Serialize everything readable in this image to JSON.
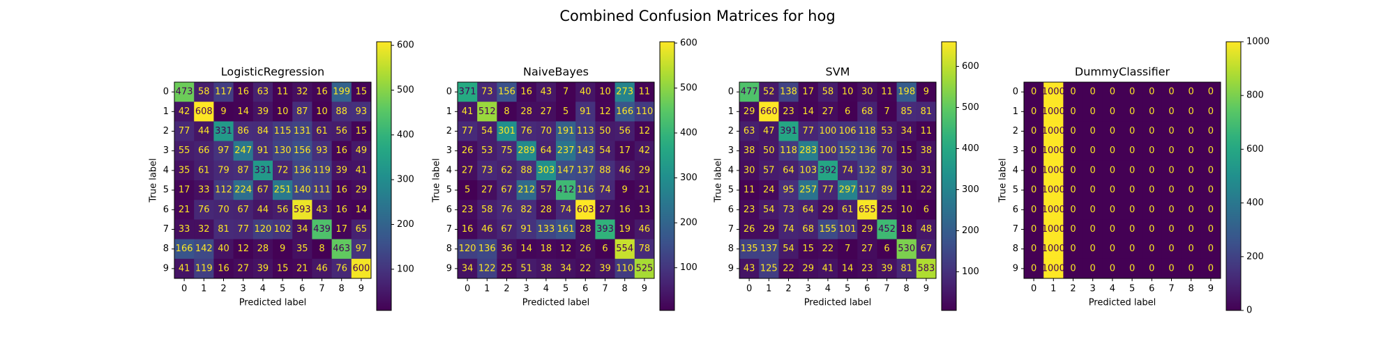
{
  "title": "Combined Confusion Matrices for hog",
  "chart_data": [
    {
      "type": "heatmap",
      "title": "LogisticRegression",
      "x_label": "Predicted label",
      "y_label": "True label",
      "colormap": "viridis",
      "categories": [
        0,
        1,
        2,
        3,
        4,
        5,
        6,
        7,
        8,
        9
      ],
      "values": [
        [
          473,
          58,
          117,
          16,
          63,
          11,
          32,
          16,
          199,
          15
        ],
        [
          42,
          608,
          9,
          14,
          39,
          10,
          87,
          10,
          88,
          93
        ],
        [
          77,
          44,
          331,
          86,
          84,
          115,
          131,
          61,
          56,
          15
        ],
        [
          55,
          66,
          97,
          247,
          91,
          130,
          156,
          93,
          16,
          49
        ],
        [
          35,
          61,
          79,
          87,
          331,
          72,
          136,
          119,
          39,
          41
        ],
        [
          17,
          33,
          112,
          224,
          67,
          251,
          140,
          111,
          16,
          29
        ],
        [
          21,
          76,
          70,
          67,
          44,
          56,
          593,
          43,
          16,
          14
        ],
        [
          33,
          32,
          81,
          77,
          120,
          102,
          34,
          439,
          17,
          65
        ],
        [
          166,
          142,
          40,
          12,
          28,
          9,
          35,
          8,
          463,
          97
        ],
        [
          41,
          119,
          16,
          27,
          39,
          15,
          21,
          46,
          76,
          600
        ]
      ],
      "clim": [
        8,
        608
      ],
      "cticks": [
        100,
        200,
        300,
        400,
        500,
        600
      ]
    },
    {
      "type": "heatmap",
      "title": "NaiveBayes",
      "x_label": "Predicted label",
      "y_label": "True label",
      "colormap": "viridis",
      "categories": [
        0,
        1,
        2,
        3,
        4,
        5,
        6,
        7,
        8,
        9
      ],
      "values": [
        [
          371,
          73,
          156,
          16,
          43,
          7,
          40,
          10,
          273,
          11
        ],
        [
          41,
          512,
          8,
          28,
          27,
          5,
          91,
          12,
          166,
          110
        ],
        [
          77,
          54,
          301,
          76,
          70,
          191,
          113,
          50,
          56,
          12
        ],
        [
          26,
          53,
          75,
          289,
          64,
          237,
          143,
          54,
          17,
          42
        ],
        [
          27,
          73,
          62,
          88,
          303,
          147,
          137,
          88,
          46,
          29
        ],
        [
          5,
          27,
          67,
          212,
          57,
          412,
          116,
          74,
          9,
          21
        ],
        [
          23,
          58,
          76,
          82,
          28,
          74,
          603,
          27,
          16,
          13
        ],
        [
          16,
          46,
          67,
          91,
          133,
          161,
          28,
          393,
          19,
          46
        ],
        [
          120,
          136,
          36,
          14,
          18,
          12,
          26,
          6,
          554,
          78
        ],
        [
          34,
          122,
          25,
          51,
          38,
          34,
          22,
          39,
          110,
          525
        ]
      ],
      "clim": [
        5,
        603
      ],
      "cticks": [
        100,
        200,
        300,
        400,
        500,
        600
      ]
    },
    {
      "type": "heatmap",
      "title": "SVM",
      "x_label": "Predicted label",
      "y_label": "True label",
      "colormap": "viridis",
      "categories": [
        0,
        1,
        2,
        3,
        4,
        5,
        6,
        7,
        8,
        9
      ],
      "values": [
        [
          477,
          52,
          138,
          17,
          58,
          10,
          30,
          11,
          198,
          9
        ],
        [
          29,
          660,
          23,
          14,
          27,
          6,
          68,
          7,
          85,
          81
        ],
        [
          63,
          47,
          391,
          77,
          100,
          106,
          118,
          53,
          34,
          11
        ],
        [
          38,
          50,
          118,
          283,
          100,
          152,
          136,
          70,
          15,
          38
        ],
        [
          30,
          57,
          64,
          103,
          392,
          74,
          132,
          87,
          30,
          31
        ],
        [
          11,
          24,
          95,
          257,
          77,
          297,
          117,
          89,
          11,
          22
        ],
        [
          23,
          54,
          73,
          64,
          29,
          61,
          655,
          25,
          10,
          6
        ],
        [
          26,
          29,
          74,
          68,
          155,
          101,
          29,
          452,
          18,
          48
        ],
        [
          135,
          137,
          54,
          15,
          22,
          7,
          27,
          6,
          530,
          67
        ],
        [
          43,
          125,
          22,
          29,
          41,
          14,
          23,
          39,
          81,
          583
        ]
      ],
      "clim": [
        6,
        660
      ],
      "cticks": [
        100,
        200,
        300,
        400,
        500,
        600
      ]
    },
    {
      "type": "heatmap",
      "title": "DummyClassifier",
      "x_label": "Predicted label",
      "y_label": "True label",
      "colormap": "viridis",
      "categories": [
        0,
        1,
        2,
        3,
        4,
        5,
        6,
        7,
        8,
        9
      ],
      "values": [
        [
          0,
          1000,
          0,
          0,
          0,
          0,
          0,
          0,
          0,
          0
        ],
        [
          0,
          1000,
          0,
          0,
          0,
          0,
          0,
          0,
          0,
          0
        ],
        [
          0,
          1000,
          0,
          0,
          0,
          0,
          0,
          0,
          0,
          0
        ],
        [
          0,
          1000,
          0,
          0,
          0,
          0,
          0,
          0,
          0,
          0
        ],
        [
          0,
          1000,
          0,
          0,
          0,
          0,
          0,
          0,
          0,
          0
        ],
        [
          0,
          1000,
          0,
          0,
          0,
          0,
          0,
          0,
          0,
          0
        ],
        [
          0,
          1000,
          0,
          0,
          0,
          0,
          0,
          0,
          0,
          0
        ],
        [
          0,
          1000,
          0,
          0,
          0,
          0,
          0,
          0,
          0,
          0
        ],
        [
          0,
          1000,
          0,
          0,
          0,
          0,
          0,
          0,
          0,
          0
        ],
        [
          0,
          1000,
          0,
          0,
          0,
          0,
          0,
          0,
          0,
          0
        ]
      ],
      "clim": [
        0,
        1000
      ],
      "cticks": [
        0,
        200,
        400,
        600,
        800,
        1000
      ]
    }
  ]
}
